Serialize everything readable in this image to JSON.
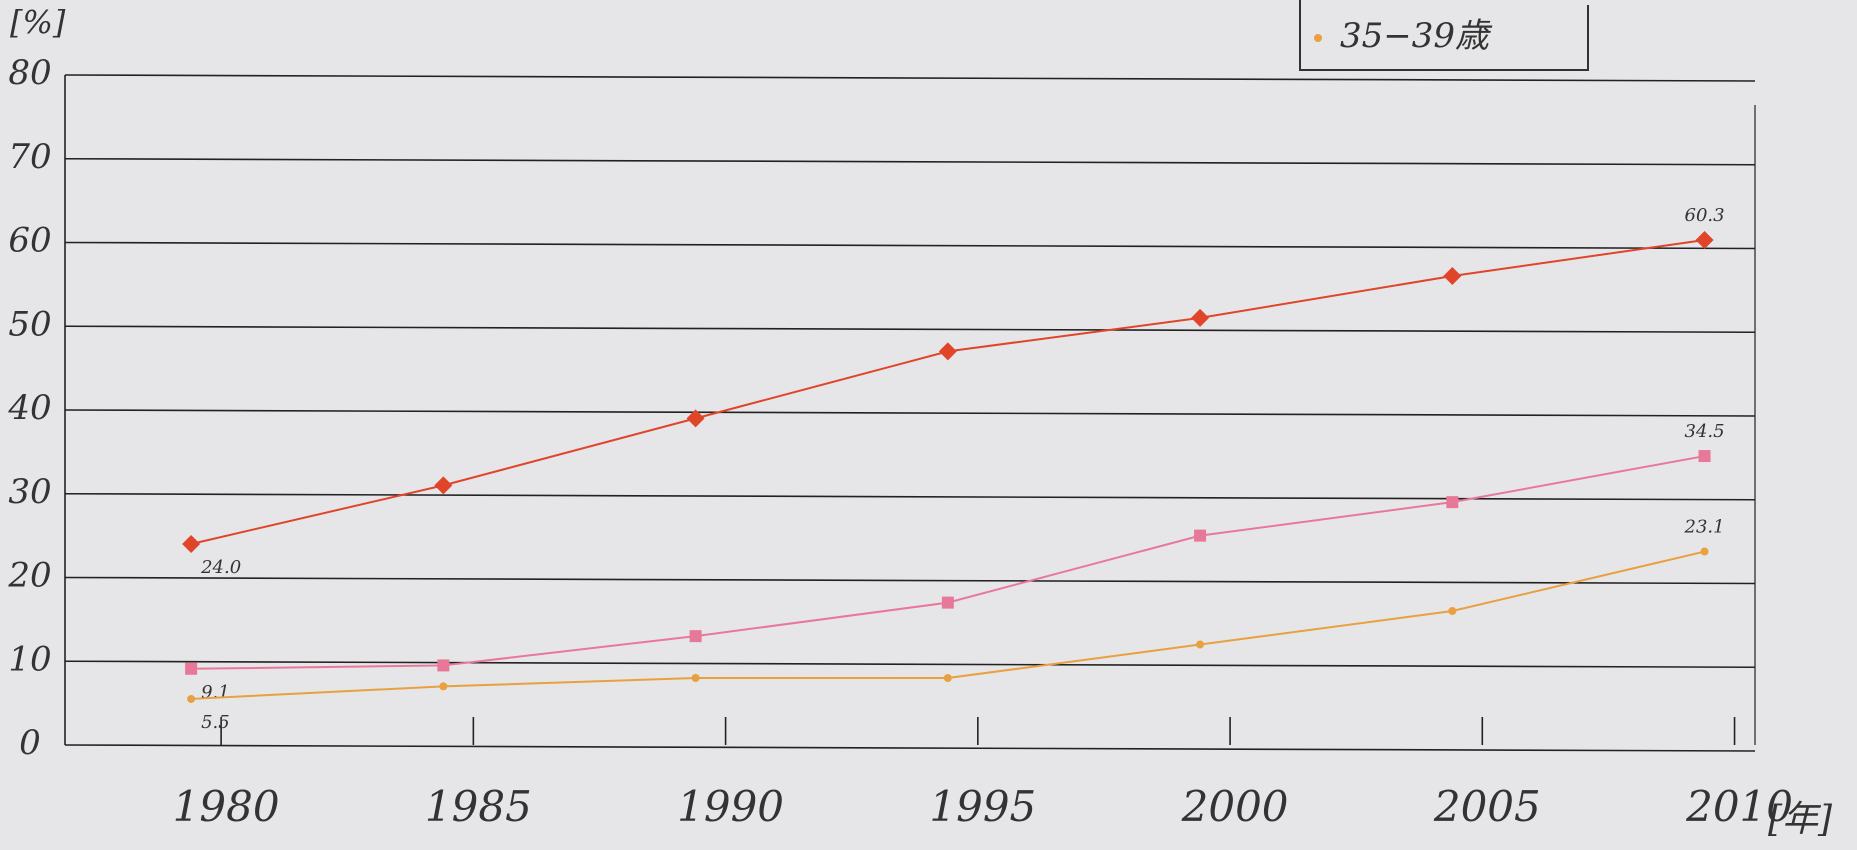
{
  "chart_data": {
    "type": "line",
    "y_label": "[%]",
    "x_label": "[年]",
    "x": [
      1980,
      1985,
      1990,
      1995,
      2000,
      2005,
      2010
    ],
    "series": [
      {
        "color": "#e0452a",
        "marker": "diamond",
        "values": [
          24.0,
          31,
          39,
          47,
          51,
          56,
          60.3
        ],
        "value_labels": [
          "24.0",
          null,
          null,
          null,
          null,
          null,
          "60.3"
        ]
      },
      {
        "color": "#e8789a",
        "marker": "square",
        "values": [
          9.1,
          9.5,
          13,
          17,
          25,
          29,
          34.5
        ],
        "value_labels": [
          "9.1",
          null,
          null,
          null,
          null,
          null,
          "34.5"
        ]
      },
      {
        "name": "35−39歳",
        "color": "#e8a040",
        "marker": "circle",
        "values": [
          5.5,
          7,
          8,
          8,
          12,
          16,
          23.1
        ],
        "value_labels": [
          "5.5",
          null,
          null,
          null,
          null,
          null,
          "23.1"
        ]
      }
    ],
    "xlim": [
      1977.5,
      2011
    ],
    "xticks": [
      1980,
      1985,
      1990,
      1995,
      2000,
      2005,
      2010
    ],
    "ylim": [
      0,
      80
    ],
    "yticks": [
      0,
      10,
      20,
      30,
      40,
      50,
      60,
      70,
      80
    ],
    "grid": true,
    "legend": "top-right"
  }
}
